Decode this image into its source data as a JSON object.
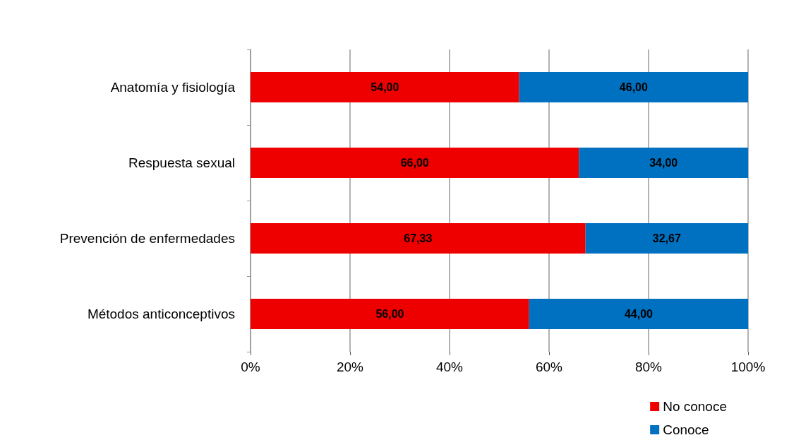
{
  "chart_data": {
    "type": "bar",
    "orientation": "horizontal",
    "stacked": true,
    "categories": [
      "Anatomía y fisiología",
      "Respuesta sexual",
      "Prevención de enfermedades",
      "Métodos anticonceptivos"
    ],
    "series": [
      {
        "name": "No conoce",
        "color": "#ee0000",
        "values": [
          54,
          66,
          67.33,
          56
        ],
        "value_labels": [
          "54,00",
          "66,00",
          "67,33",
          "56,00"
        ]
      },
      {
        "name": "Conoce",
        "color": "#0070c0",
        "values": [
          46,
          34,
          32.67,
          44
        ],
        "value_labels": [
          "46,00",
          "34,00",
          "32,67",
          "44,00"
        ]
      }
    ],
    "xlim": [
      0,
      100
    ],
    "xticks": [
      {
        "value": 0,
        "label": "0%"
      },
      {
        "value": 20,
        "label": "20%"
      },
      {
        "value": 40,
        "label": "40%"
      },
      {
        "value": 60,
        "label": "60%"
      },
      {
        "value": 80,
        "label": "80%"
      },
      {
        "value": 100,
        "label": "100%"
      }
    ],
    "grid": true,
    "legend": "bottom right"
  }
}
